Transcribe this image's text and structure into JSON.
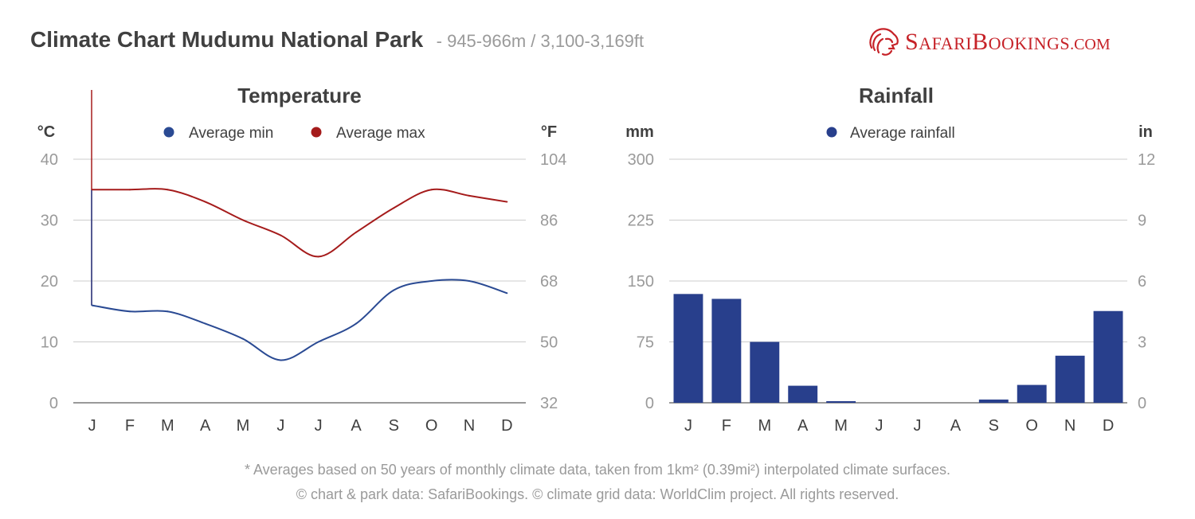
{
  "header": {
    "title": "Climate Chart Mudumu National Park",
    "subtitle": "- 945-966m / 3,100-3,169ft"
  },
  "logo": {
    "text_a": "S",
    "text_b": "AFARI",
    "text_c": "B",
    "text_d": "OOKINGS",
    "text_e": ".COM"
  },
  "footer": {
    "line1": "* Averages based on 50 years of monthly climate data, taken from 1km² (0.39mi²) interpolated climate surfaces.",
    "line2": "© chart & park data: SafariBookings. © climate grid data: WorldClim project. All rights reserved."
  },
  "colors": {
    "min": "#2a4a93",
    "max": "#a51b1b",
    "rain": "#283f8c",
    "grid": "#cccccc",
    "tick": "#9a9a9a",
    "text": "#404040"
  },
  "chart_data": [
    {
      "type": "line",
      "title": "Temperature",
      "ylabel": "°C",
      "ylabel_right": "°F",
      "categories": [
        "J",
        "F",
        "M",
        "A",
        "M",
        "J",
        "J",
        "A",
        "S",
        "O",
        "N",
        "D"
      ],
      "ylim": [
        0,
        40
      ],
      "yticks": [
        "0",
        "10",
        "20",
        "30",
        "40"
      ],
      "yticks_right": [
        "32",
        "50",
        "68",
        "86",
        "104"
      ],
      "legend_position": "top-center",
      "grid": true,
      "series": [
        {
          "name": "Average min",
          "values": [
            16,
            15,
            15,
            13,
            10.5,
            7,
            10,
            13,
            18.5,
            20,
            20,
            18
          ]
        },
        {
          "name": "Average max",
          "values": [
            35,
            35,
            35,
            33,
            30,
            27.5,
            24,
            28,
            32,
            35,
            34,
            33
          ]
        }
      ]
    },
    {
      "type": "bar",
      "title": "Rainfall",
      "ylabel": "mm",
      "ylabel_right": "in",
      "categories": [
        "J",
        "F",
        "M",
        "A",
        "M",
        "J",
        "J",
        "A",
        "S",
        "O",
        "N",
        "D"
      ],
      "ylim": [
        0,
        300
      ],
      "yticks": [
        "0",
        "75",
        "150",
        "225",
        "300"
      ],
      "yticks_right": [
        "0",
        "3",
        "6",
        "9",
        "12"
      ],
      "legend_position": "top-center",
      "grid": true,
      "series": [
        {
          "name": "Average rainfall",
          "values": [
            134,
            128,
            75,
            21,
            2,
            0,
            0,
            0,
            4,
            22,
            58,
            113
          ]
        }
      ]
    }
  ]
}
